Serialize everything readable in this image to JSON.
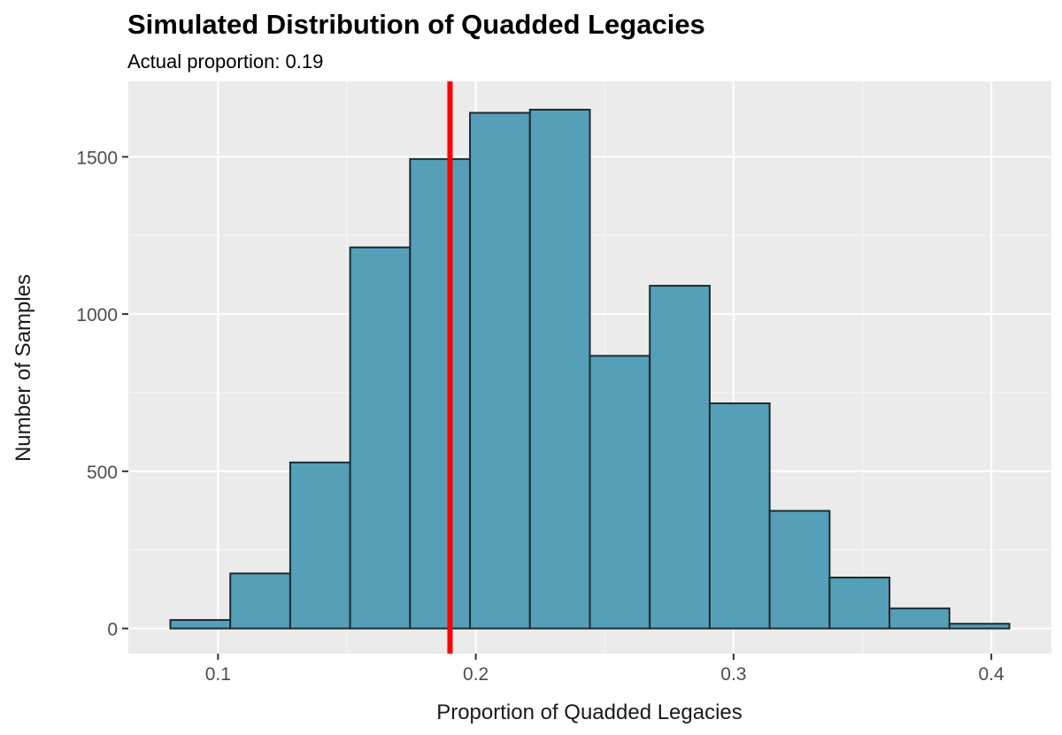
{
  "chart_data": {
    "type": "bar",
    "title": "Simulated Distribution of Quadded Legacies",
    "subtitle": "Actual proportion: 0.19",
    "xlabel": "Proportion of Quadded Legacies",
    "ylabel": "Number of Samples",
    "bin_width": 0.02325,
    "bins": [
      {
        "x_start": 0.0815,
        "x_end": 0.10475,
        "count": 27
      },
      {
        "x_start": 0.10475,
        "x_end": 0.128,
        "count": 175
      },
      {
        "x_start": 0.128,
        "x_end": 0.15125,
        "count": 528
      },
      {
        "x_start": 0.15125,
        "x_end": 0.1745,
        "count": 1212
      },
      {
        "x_start": 0.1745,
        "x_end": 0.19775,
        "count": 1493
      },
      {
        "x_start": 0.19775,
        "x_end": 0.221,
        "count": 1640
      },
      {
        "x_start": 0.221,
        "x_end": 0.24425,
        "count": 1650
      },
      {
        "x_start": 0.24425,
        "x_end": 0.2675,
        "count": 867
      },
      {
        "x_start": 0.2675,
        "x_end": 0.29075,
        "count": 1090
      },
      {
        "x_start": 0.29075,
        "x_end": 0.314,
        "count": 716
      },
      {
        "x_start": 0.314,
        "x_end": 0.33725,
        "count": 374
      },
      {
        "x_start": 0.33725,
        "x_end": 0.3605,
        "count": 162
      },
      {
        "x_start": 0.3605,
        "x_end": 0.38375,
        "count": 64
      },
      {
        "x_start": 0.38375,
        "x_end": 0.407,
        "count": 15
      }
    ],
    "reference_line": {
      "x": 0.19,
      "color": "#ff0000"
    },
    "xlim": [
      0.0652,
      0.4233
    ],
    "ylim": [
      -80,
      1740
    ],
    "x_ticks": [
      0.1,
      0.2,
      0.3,
      0.4
    ],
    "x_tick_labels": [
      "0.1",
      "0.2",
      "0.3",
      "0.4"
    ],
    "y_ticks": [
      0,
      500,
      1000,
      1500
    ],
    "y_tick_labels": [
      "0",
      "500",
      "1000",
      "1500"
    ],
    "grid": true,
    "colors": {
      "bar_fill": "#559FB8",
      "bar_stroke": "#1c2b31",
      "panel_bg": "#EBEBEB",
      "grid_major": "#ffffff",
      "grid_minor": "#f5f5f5",
      "reference_line": "#ff0000"
    }
  }
}
